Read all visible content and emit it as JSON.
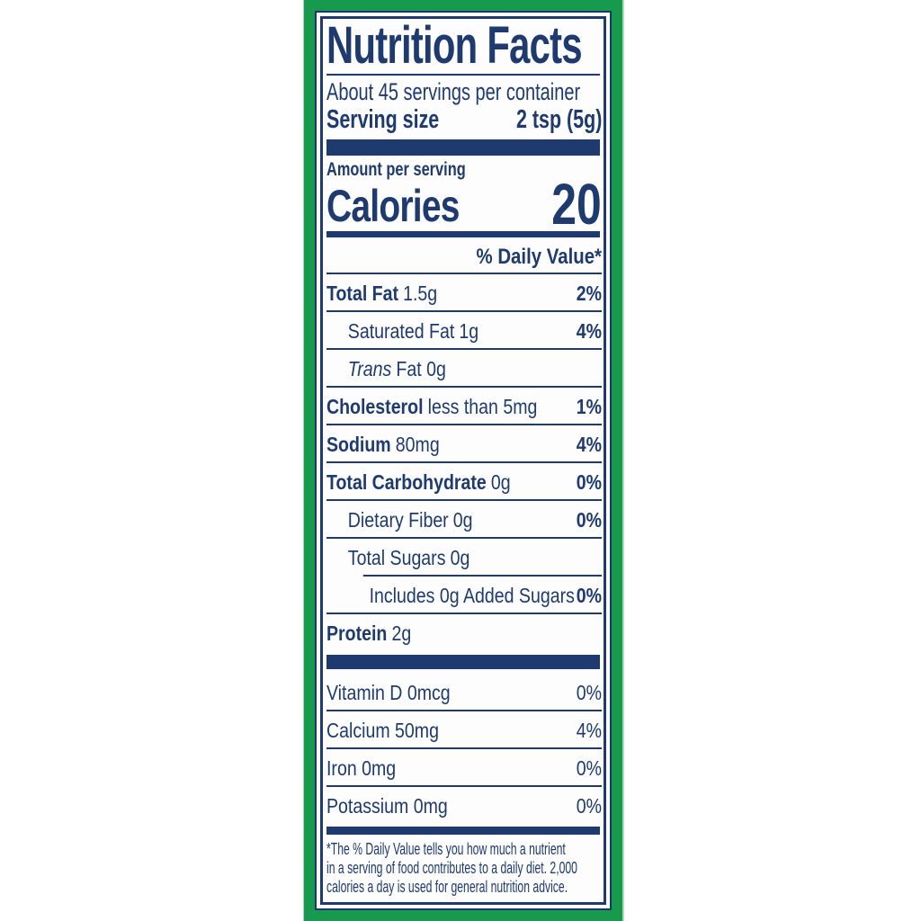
{
  "colors": {
    "navy": "#1e3a6e",
    "green": "#17994e",
    "background": "#ffffff"
  },
  "label": {
    "title": "Nutrition Facts",
    "servings_per_container": "About 45 servings per container",
    "serving_size_label": "Serving size",
    "serving_size_value": "2 tsp (5g)",
    "amount_per_serving": "Amount per serving",
    "calories_label": "Calories",
    "calories_value": "20",
    "daily_value_header": "% Daily Value*",
    "rows": [
      {
        "name": "Total Fat",
        "amount": "1.5g",
        "dv": "2%"
      },
      {
        "name": "Saturated Fat",
        "amount": "1g",
        "dv": "4%"
      },
      {
        "name": "Trans",
        "amount": "Fat 0g",
        "dv": ""
      },
      {
        "name": "Cholesterol",
        "amount": "less than 5mg",
        "dv": "1%"
      },
      {
        "name": "Sodium",
        "amount": "80mg",
        "dv": "4%"
      },
      {
        "name": "Total Carbohydrate",
        "amount": "0g",
        "dv": "0%"
      },
      {
        "name": "Dietary Fiber",
        "amount": "0g",
        "dv": "0%"
      },
      {
        "name": "Total Sugars",
        "amount": "0g",
        "dv": ""
      },
      {
        "name": "Includes 0g Added Sugars",
        "amount": "",
        "dv": "0%"
      },
      {
        "name": "Protein",
        "amount": "2g",
        "dv": ""
      }
    ],
    "vitamins": [
      {
        "name": "Vitamin D 0mcg",
        "dv": "0%"
      },
      {
        "name": "Calcium 50mg",
        "dv": "4%"
      },
      {
        "name": "Iron 0mg",
        "dv": "0%"
      },
      {
        "name": "Potassium 0mg",
        "dv": "0%"
      }
    ],
    "footnote": "*The % Daily Value tells you how much a nutrient\nin a serving of food contributes to a daily diet. 2,000\ncalories a day is used for general nutrition advice."
  }
}
